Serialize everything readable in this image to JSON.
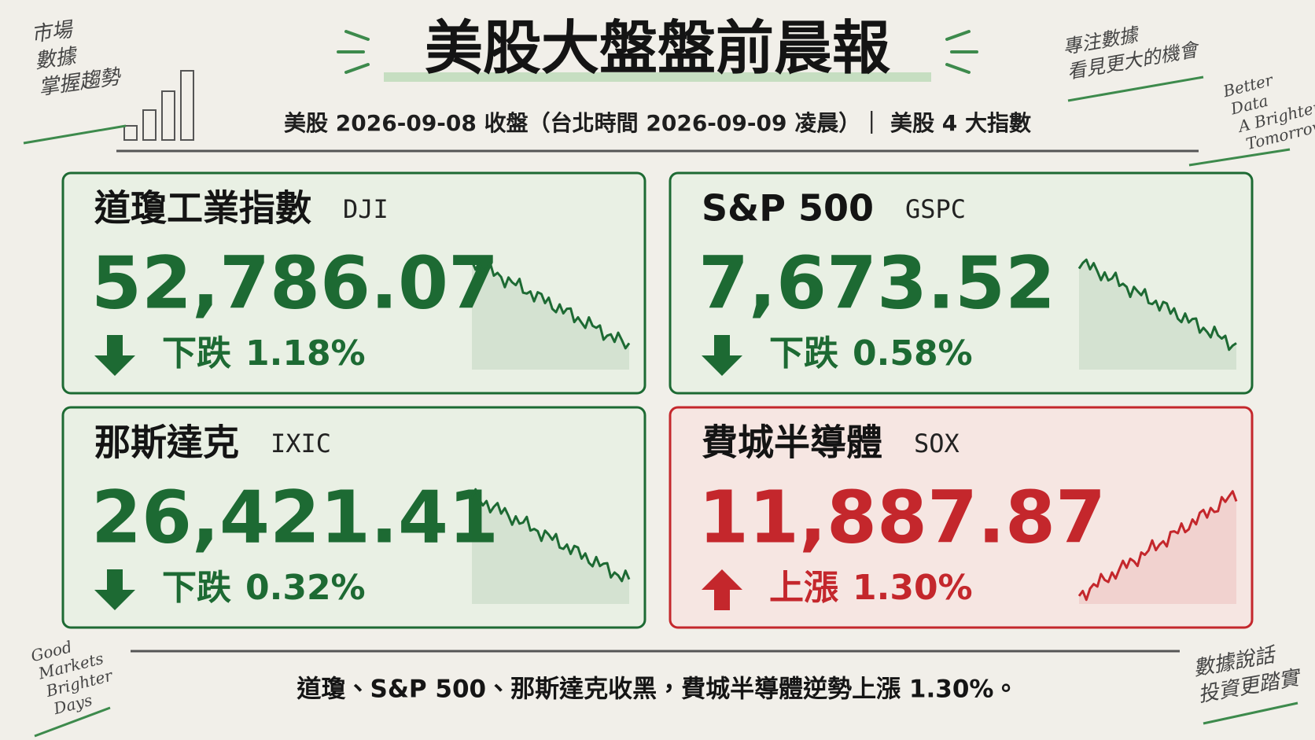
{
  "header": {
    "title": "美股大盤盤前晨報",
    "subtitle": "美股 2026-09-08 收盤（台北時間 2026-09-09 凌晨）｜ 美股 4 大指數"
  },
  "notes": {
    "top_left": [
      "市場",
      "數據",
      "掌握趨勢"
    ],
    "top_right": [
      "專注數據",
      "看見更大的機會"
    ],
    "right": [
      "Better",
      "Data",
      "A Brighter",
      "Tomorrow"
    ],
    "bottom_left": [
      "Good",
      "Markets",
      "Brighter",
      "Days"
    ],
    "bottom_right": [
      "數據說話",
      "投資更踏實"
    ]
  },
  "cards": [
    {
      "name": "道瓊工業指數",
      "code": "DJI",
      "value": "52,786.07",
      "direction": "下跌",
      "change": "1.18%",
      "color": "#1d6a33",
      "trend": "down"
    },
    {
      "name": "S&P 500",
      "code": "GSPC",
      "value": "7,673.52",
      "direction": "下跌",
      "change": "0.58%",
      "color": "#1d6a33",
      "trend": "down"
    },
    {
      "name": "那斯達克",
      "code": "IXIC",
      "value": "26,421.41",
      "direction": "下跌",
      "change": "0.32%",
      "color": "#1d6a33",
      "trend": "down"
    },
    {
      "name": "費城半導體",
      "code": "SOX",
      "value": "11,887.87",
      "direction": "上漲",
      "change": "1.30%",
      "color": "#c4272c",
      "trend": "up"
    }
  ],
  "footer": "道瓊、S&P 500、那斯達克收黑，費城半導體逆勢上漲 1.30%。"
}
